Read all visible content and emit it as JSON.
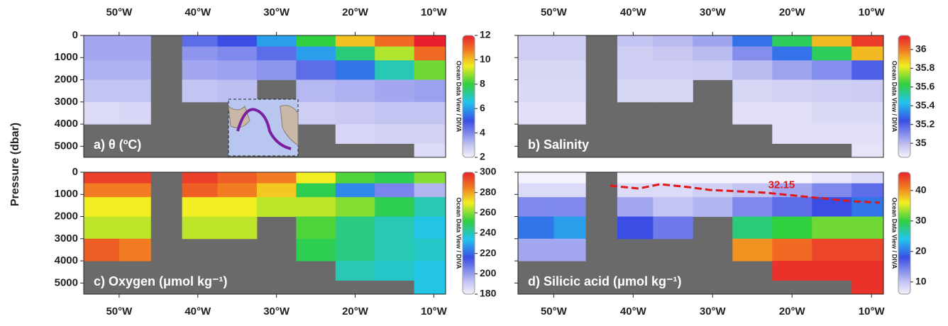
{
  "chart_data": [
    {
      "type": "heatmap",
      "title": "a) θ (ºC)",
      "ylabel": "Pressure (dbar)",
      "credit": "Ocean Data View / DIVA",
      "xaxis_position": "top",
      "show_ytick_labels": true,
      "x": [
        -52,
        -48,
        -44,
        -40,
        -35,
        -30,
        -25,
        -20,
        -15,
        -10
      ],
      "y": [
        250,
        750,
        1500,
        2500,
        3500,
        4500,
        5250
      ],
      "z": [
        [
          3.5,
          3.5,
          null,
          4.5,
          5,
          6,
          8,
          10,
          11,
          12
        ],
        [
          3.5,
          3.5,
          null,
          3.8,
          4,
          4.5,
          6,
          7.5,
          9,
          11
        ],
        [
          3.3,
          3.3,
          null,
          3.5,
          3.6,
          3.8,
          4.5,
          5.5,
          7,
          8.5
        ],
        [
          3,
          3,
          null,
          3,
          3.1,
          null,
          3.2,
          3.3,
          3.5,
          3.6
        ],
        [
          2.5,
          2.6,
          null,
          null,
          null,
          null,
          2.8,
          2.9,
          3,
          3
        ],
        [
          null,
          null,
          null,
          null,
          null,
          null,
          null,
          2.6,
          2.7,
          2.7
        ],
        [
          null,
          null,
          null,
          null,
          null,
          null,
          null,
          null,
          null,
          2.5
        ]
      ],
      "xlim": [
        -54.5,
        -8.5
      ],
      "xticks": [
        {
          "value": -50,
          "label": "50°W"
        },
        {
          "value": -40,
          "label": "40°W"
        },
        {
          "value": -30,
          "label": "30°W"
        },
        {
          "value": -20,
          "label": "20°W"
        },
        {
          "value": -10,
          "label": "10°W"
        }
      ],
      "ylim": [
        0,
        5500
      ],
      "yticks": [
        0,
        1000,
        2000,
        3000,
        4000,
        5000
      ],
      "clim": [
        2,
        12
      ],
      "cticks": [
        2,
        4,
        6,
        8,
        10,
        12
      ]
    },
    {
      "type": "heatmap",
      "title": "b) Salinity",
      "credit": "Ocean Data View / DIVA",
      "xaxis_position": "top",
      "show_ytick_labels": false,
      "x": [
        -52,
        -48,
        -44,
        -40,
        -35,
        -30,
        -25,
        -20,
        -15,
        -10
      ],
      "y": [
        250,
        750,
        1500,
        2500,
        3500,
        4500,
        5250
      ],
      "z": [
        [
          34.95,
          34.95,
          null,
          34.98,
          35.0,
          35.05,
          35.3,
          35.6,
          35.9,
          36.1
        ],
        [
          34.95,
          34.95,
          null,
          34.95,
          34.97,
          35.0,
          35.1,
          35.3,
          35.6,
          35.9
        ],
        [
          34.93,
          34.93,
          null,
          34.95,
          34.95,
          34.96,
          35.0,
          35.05,
          35.1,
          35.2
        ],
        [
          34.92,
          34.92,
          null,
          34.93,
          34.93,
          null,
          34.93,
          34.94,
          34.95,
          34.96
        ],
        [
          34.9,
          34.9,
          null,
          null,
          null,
          null,
          34.9,
          34.9,
          34.92,
          34.92
        ],
        [
          null,
          null,
          null,
          null,
          null,
          null,
          null,
          34.9,
          34.9,
          34.9
        ],
        [
          null,
          null,
          null,
          null,
          null,
          null,
          null,
          null,
          null,
          34.89
        ]
      ],
      "xlim": [
        -54.5,
        -8.5
      ],
      "xticks": [
        {
          "value": -50,
          "label": "50°W"
        },
        {
          "value": -40,
          "label": "40°W"
        },
        {
          "value": -30,
          "label": "30°W"
        },
        {
          "value": -20,
          "label": "20°W"
        },
        {
          "value": -10,
          "label": "10°W"
        }
      ],
      "ylim": [
        0,
        5500
      ],
      "yticks": [
        0,
        1000,
        2000,
        3000,
        4000,
        5000
      ],
      "clim": [
        34.85,
        36.15
      ],
      "cticks": [
        35,
        35.2,
        35.4,
        35.6,
        35.8,
        36
      ]
    },
    {
      "type": "heatmap",
      "title": "c) Oxygen (μmol kg⁻¹)",
      "credit": "Ocean Data View / DIVA",
      "xaxis_position": "bottom",
      "show_ytick_labels": true,
      "x": [
        -52,
        -48,
        -44,
        -40,
        -35,
        -30,
        -25,
        -20,
        -15,
        -10
      ],
      "y": [
        250,
        750,
        1500,
        2500,
        3500,
        4500,
        5250
      ],
      "z": [
        [
          295,
          295,
          null,
          295,
          290,
          285,
          270,
          255,
          250,
          260
        ],
        [
          285,
          285,
          null,
          290,
          285,
          275,
          250,
          225,
          205,
          195
        ],
        [
          270,
          270,
          null,
          270,
          270,
          265,
          265,
          260,
          250,
          240
        ],
        [
          265,
          265,
          null,
          265,
          265,
          null,
          255,
          245,
          240,
          235
        ],
        [
          290,
          285,
          null,
          null,
          null,
          null,
          250,
          245,
          240,
          238
        ],
        [
          null,
          null,
          null,
          null,
          null,
          null,
          null,
          240,
          238,
          235
        ],
        [
          null,
          null,
          null,
          null,
          null,
          null,
          null,
          null,
          null,
          235
        ]
      ],
      "xlim": [
        -54.5,
        -8.5
      ],
      "xticks": [
        {
          "value": -50,
          "label": "50°W"
        },
        {
          "value": -40,
          "label": "40°W"
        },
        {
          "value": -30,
          "label": "30°W"
        },
        {
          "value": -20,
          "label": "20°W"
        },
        {
          "value": -10,
          "label": "10°W"
        }
      ],
      "ylim": [
        0,
        5500
      ],
      "yticks": [
        0,
        1000,
        2000,
        3000,
        4000,
        5000
      ],
      "clim": [
        180,
        300
      ],
      "cticks": [
        180,
        200,
        220,
        240,
        260,
        280,
        300
      ]
    },
    {
      "type": "heatmap",
      "title": "d) Silicic acid (μmol kg⁻¹)",
      "credit": "Ocean Data View / DIVA",
      "annotation": "32.15",
      "xaxis_position": "bottom",
      "show_ytick_labels": false,
      "x": [
        -52,
        -48,
        -44,
        -40,
        -35,
        -30,
        -25,
        -20,
        -15,
        -10
      ],
      "y": [
        250,
        750,
        1500,
        2500,
        3500,
        4500,
        5250
      ],
      "z": [
        [
          6,
          6,
          null,
          5,
          5,
          5,
          5,
          6,
          7,
          8
        ],
        [
          8,
          8,
          null,
          8,
          8,
          9,
          10,
          12,
          14,
          16
        ],
        [
          14,
          14,
          null,
          12,
          10,
          11,
          14,
          16,
          18,
          20
        ],
        [
          20,
          22,
          null,
          18,
          15,
          null,
          28,
          30,
          32,
          32
        ],
        [
          12,
          12,
          null,
          null,
          null,
          null,
          40,
          42,
          44,
          44
        ],
        [
          null,
          null,
          null,
          null,
          null,
          null,
          null,
          45,
          45,
          45
        ],
        [
          null,
          null,
          null,
          null,
          null,
          null,
          null,
          null,
          null,
          45
        ]
      ],
      "xlim": [
        -54.5,
        -8.5
      ],
      "xticks": [
        {
          "value": -50,
          "label": "50°W"
        },
        {
          "value": -40,
          "label": "40°W"
        },
        {
          "value": -30,
          "label": "30°W"
        },
        {
          "value": -20,
          "label": "20°W"
        },
        {
          "value": -10,
          "label": "10°W"
        }
      ],
      "ylim": [
        0,
        5500
      ],
      "yticks": [
        0,
        1000,
        2000,
        3000,
        4000,
        5000
      ],
      "clim": [
        6,
        46
      ],
      "cticks": [
        10,
        20,
        30,
        40
      ]
    }
  ]
}
